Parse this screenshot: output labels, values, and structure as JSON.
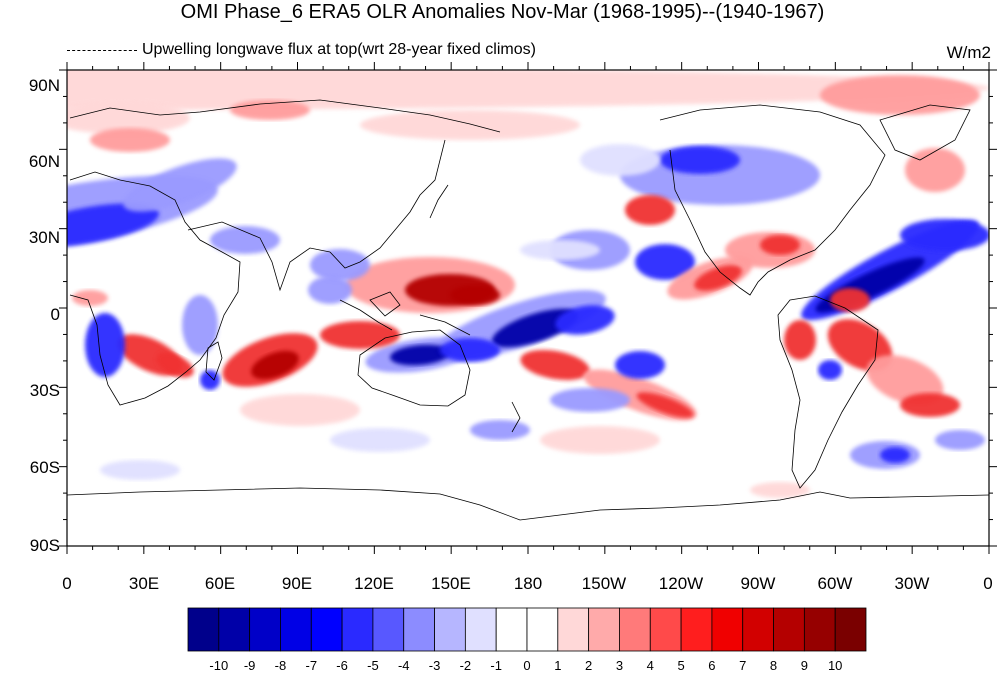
{
  "title": "OMI Phase_6 ERA5 OLR Anomalies Nov-Mar (1968-1995)--(1940-1967)",
  "legend_text": "Upwelling longwave flux at top(wrt 28-year fixed climos)",
  "units": "W/m2",
  "lat_labels": [
    "90N",
    "60N",
    "30N",
    "0",
    "30S",
    "60S",
    "90S"
  ],
  "lon_labels": [
    "0",
    "30E",
    "60E",
    "90E",
    "120E",
    "150E",
    "180",
    "150W",
    "120W",
    "90W",
    "60W",
    "30W",
    "0"
  ],
  "colorbar": {
    "labels": [
      "-10",
      "-9",
      "-8",
      "-7",
      "-6",
      "-5",
      "-4",
      "-3",
      "-2",
      "-1",
      "0",
      "1",
      "2",
      "3",
      "4",
      "5",
      "6",
      "7",
      "8",
      "9",
      "10"
    ],
    "colors": [
      "#00008b",
      "#0000a8",
      "#0000c8",
      "#0000e6",
      "#0000ff",
      "#2a2aff",
      "#5858ff",
      "#8c8cff",
      "#b6b6ff",
      "#e0e0ff",
      "#ffffff",
      "#ffffff",
      "#ffd8d8",
      "#ffaaaa",
      "#ff7a7a",
      "#ff4a4a",
      "#ff1e1e",
      "#f00000",
      "#d20000",
      "#b40000",
      "#960000",
      "#7a0000"
    ]
  }
}
